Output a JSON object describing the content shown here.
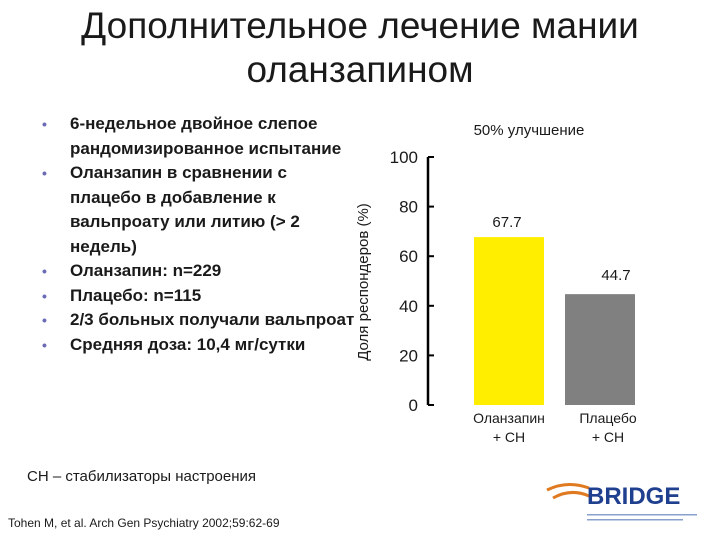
{
  "slide": {
    "title_line1": "Дополнительное лечение мании",
    "title_line2": "оланзапином",
    "bullets": [
      "6-недельное двойное слепое рандомизированное испытание",
      "Оланзапин в сравнении с плацебо в добавление к вальпроату или литию (> 2 недель)",
      "Оланзапин: n=229",
      "Плацебо: n=115",
      "2/3 больных получали вальпроат",
      "Средняя доза: 10,4 мг/сутки"
    ],
    "footnote": "СН – стабилизаторы настроения",
    "citation": "Tohen M, et al. Arch Gen Psychiatry 2002;59:62-69",
    "logo_text": "BRIDGE",
    "colors": {
      "accent": "#ffee00",
      "placebo": "#808080",
      "bullet": "#6b6bb5",
      "logo": "#1f3f8f"
    }
  },
  "chart_data": {
    "type": "bar",
    "title": "50% улучшение",
    "ylabel": "Доля респондеров (%)",
    "xlabel": "",
    "ylim": [
      0,
      100
    ],
    "yticks": [
      "0",
      "20",
      "40",
      "60",
      "80",
      "100"
    ],
    "categories": [
      "Оланзапин + СН",
      "Плацебо + СН"
    ],
    "category_lines": [
      [
        "Оланзапин",
        "+ СН"
      ],
      [
        "Плацебо",
        "+ СН"
      ]
    ],
    "values": [
      67.7,
      44.7
    ],
    "value_labels": [
      "67.7",
      "44.7"
    ],
    "bar_colors": [
      "#ffee00",
      "#808080"
    ],
    "grid": false,
    "legend": "none"
  }
}
